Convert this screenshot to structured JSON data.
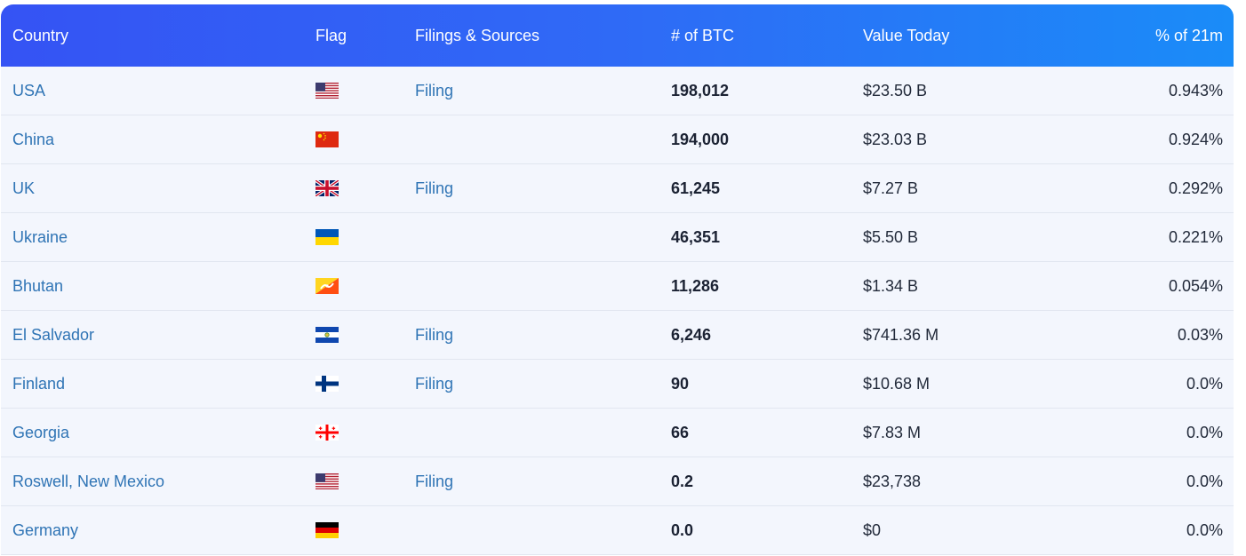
{
  "table": {
    "headers": {
      "country": "Country",
      "flag": "Flag",
      "filings": "Filings & Sources",
      "btc": "# of BTC",
      "value": "Value Today",
      "pct": "% of 21m"
    },
    "rows": [
      {
        "country": "USA",
        "flag_icon": "usa-flag-icon",
        "filing": "Filing",
        "btc": "198,012",
        "value": "$23.50 B",
        "pct": "0.943%"
      },
      {
        "country": "China",
        "flag_icon": "china-flag-icon",
        "filing": "",
        "btc": "194,000",
        "value": "$23.03 B",
        "pct": "0.924%"
      },
      {
        "country": "UK",
        "flag_icon": "uk-flag-icon",
        "filing": "Filing",
        "btc": "61,245",
        "value": "$7.27 B",
        "pct": "0.292%"
      },
      {
        "country": "Ukraine",
        "flag_icon": "ukraine-flag-icon",
        "filing": "",
        "btc": "46,351",
        "value": "$5.50 B",
        "pct": "0.221%"
      },
      {
        "country": "Bhutan",
        "flag_icon": "bhutan-flag-icon",
        "filing": "",
        "btc": "11,286",
        "value": "$1.34 B",
        "pct": "0.054%"
      },
      {
        "country": "El Salvador",
        "flag_icon": "el-salvador-flag-icon",
        "filing": "Filing",
        "btc": "6,246",
        "value": "$741.36 M",
        "pct": "0.03%"
      },
      {
        "country": "Finland",
        "flag_icon": "finland-flag-icon",
        "filing": "Filing",
        "btc": "90",
        "value": "$10.68 M",
        "pct": "0.0%"
      },
      {
        "country": "Georgia",
        "flag_icon": "georgia-flag-icon",
        "filing": "",
        "btc": "66",
        "value": "$7.83 M",
        "pct": "0.0%"
      },
      {
        "country": "Roswell, New Mexico",
        "flag_icon": "usa-flag-icon",
        "filing": "Filing",
        "btc": "0.2",
        "value": "$23,738",
        "pct": "0.0%"
      },
      {
        "country": "Germany",
        "flag_icon": "germany-flag-icon",
        "filing": "",
        "btc": "0.0",
        "value": "$0",
        "pct": "0.0%"
      }
    ]
  },
  "colors": {
    "header_start": "#3553f4",
    "header_end": "#1a8cf8",
    "link": "#2f74b5",
    "row_bg": "#f3f6fd"
  }
}
